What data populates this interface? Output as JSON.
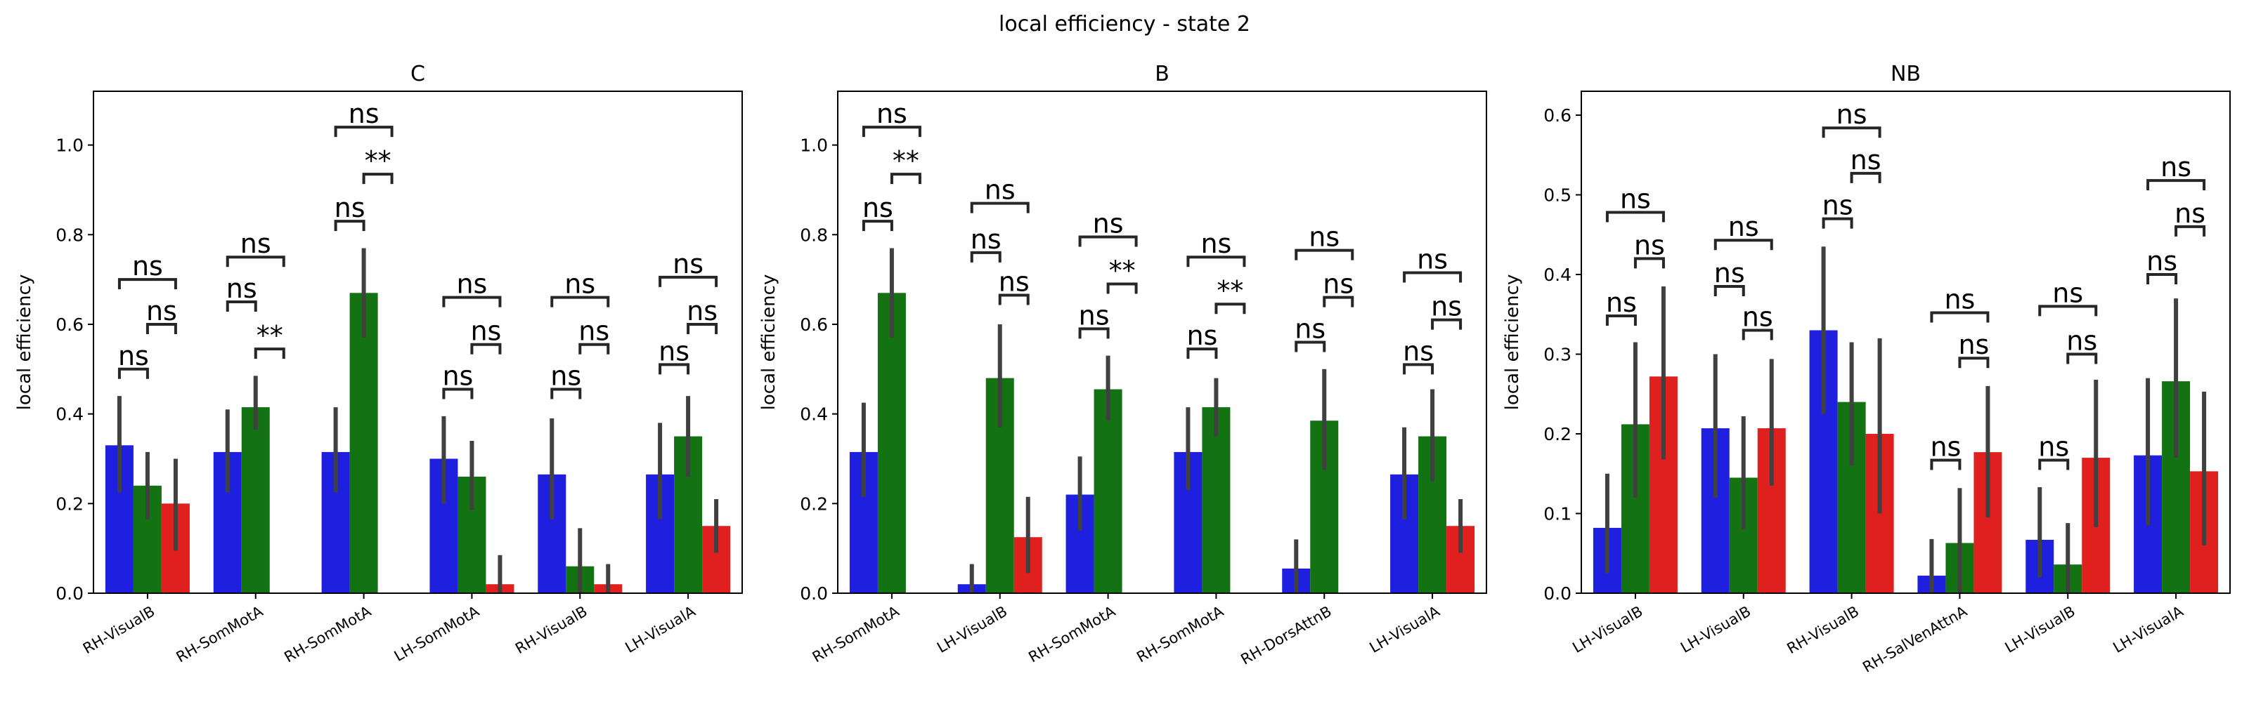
{
  "suptitle": "local efficiency - state 2",
  "colors": {
    "blue": "#1f1fe0",
    "green": "#137313",
    "red": "#e01f1f",
    "error_bar": "#404040"
  },
  "chart_data": [
    {
      "type": "bar",
      "title": "C",
      "ylabel": "local efficiency",
      "ylim": [
        0,
        1.12
      ],
      "yticks": [
        0.0,
        0.2,
        0.4,
        0.6,
        0.8,
        1.0
      ],
      "categories": [
        "RH-VisualB",
        "RH-SomMotA",
        "RH-SomMotA",
        "LH-SomMotA",
        "RH-VisualB",
        "LH-VisualA"
      ],
      "series": [
        {
          "color": "blue",
          "values": [
            0.33,
            0.315,
            0.315,
            0.3,
            0.265,
            0.265
          ],
          "err_low": [
            0.225,
            0.225,
            0.225,
            0.2,
            0.165,
            0.165
          ],
          "err_high": [
            0.44,
            0.41,
            0.415,
            0.395,
            0.39,
            0.38
          ]
        },
        {
          "color": "green",
          "values": [
            0.24,
            0.415,
            0.67,
            0.26,
            0.06,
            0.35
          ],
          "err_low": [
            0.165,
            0.365,
            0.57,
            0.185,
            0.0,
            0.26
          ],
          "err_high": [
            0.315,
            0.485,
            0.77,
            0.34,
            0.145,
            0.44
          ]
        },
        {
          "color": "red",
          "values": [
            0.2,
            null,
            null,
            0.02,
            0.02,
            0.15
          ],
          "err_low": [
            0.095,
            null,
            null,
            0.0,
            0.0,
            0.09
          ],
          "err_high": [
            0.3,
            null,
            null,
            0.085,
            0.065,
            0.21
          ]
        }
      ],
      "annotations": [
        {
          "cat": 0,
          "a": 0,
          "b": 1,
          "y": 0.5,
          "text": "ns"
        },
        {
          "cat": 0,
          "a": 1,
          "b": 2,
          "y": 0.6,
          "text": "ns"
        },
        {
          "cat": 0,
          "a": 0,
          "b": 2,
          "y": 0.7,
          "text": "ns"
        },
        {
          "cat": 1,
          "a": 0,
          "b": 1,
          "y": 0.65,
          "text": "ns"
        },
        {
          "cat": 1,
          "a": 1,
          "b": 2,
          "y": 0.545,
          "text": "**"
        },
        {
          "cat": 1,
          "a": 0,
          "b": 2,
          "y": 0.75,
          "text": "ns"
        },
        {
          "cat": 2,
          "a": 0,
          "b": 1,
          "y": 0.83,
          "text": "ns"
        },
        {
          "cat": 2,
          "a": 1,
          "b": 2,
          "y": 0.935,
          "text": "**"
        },
        {
          "cat": 2,
          "a": 0,
          "b": 2,
          "y": 1.04,
          "text": "ns"
        },
        {
          "cat": 3,
          "a": 0,
          "b": 1,
          "y": 0.455,
          "text": "ns"
        },
        {
          "cat": 3,
          "a": 1,
          "b": 2,
          "y": 0.555,
          "text": "ns"
        },
        {
          "cat": 3,
          "a": 0,
          "b": 2,
          "y": 0.66,
          "text": "ns"
        },
        {
          "cat": 4,
          "a": 0,
          "b": 1,
          "y": 0.455,
          "text": "ns"
        },
        {
          "cat": 4,
          "a": 1,
          "b": 2,
          "y": 0.555,
          "text": "ns"
        },
        {
          "cat": 4,
          "a": 0,
          "b": 2,
          "y": 0.66,
          "text": "ns"
        },
        {
          "cat": 5,
          "a": 0,
          "b": 1,
          "y": 0.51,
          "text": "ns"
        },
        {
          "cat": 5,
          "a": 1,
          "b": 2,
          "y": 0.6,
          "text": "ns"
        },
        {
          "cat": 5,
          "a": 0,
          "b": 2,
          "y": 0.705,
          "text": "ns"
        }
      ]
    },
    {
      "type": "bar",
      "title": "B",
      "ylabel": "local efficiency",
      "ylim": [
        0,
        1.12
      ],
      "yticks": [
        0.0,
        0.2,
        0.4,
        0.6,
        0.8,
        1.0
      ],
      "categories": [
        "RH-SomMotA",
        "LH-VisualB",
        "RH-SomMotA",
        "RH-SomMotA",
        "RH-DorsAttnB",
        "LH-VisualA"
      ],
      "series": [
        {
          "color": "blue",
          "values": [
            0.315,
            0.02,
            0.22,
            0.315,
            0.055,
            0.265
          ],
          "err_low": [
            0.215,
            0.0,
            0.14,
            0.23,
            0.0,
            0.165
          ],
          "err_high": [
            0.425,
            0.065,
            0.305,
            0.415,
            0.12,
            0.37
          ]
        },
        {
          "color": "green",
          "values": [
            0.67,
            0.48,
            0.455,
            0.415,
            0.385,
            0.35
          ],
          "err_low": [
            0.57,
            0.37,
            0.385,
            0.35,
            0.275,
            0.25
          ],
          "err_high": [
            0.77,
            0.6,
            0.53,
            0.48,
            0.5,
            0.455
          ]
        },
        {
          "color": "red",
          "values": [
            null,
            0.125,
            null,
            null,
            null,
            0.15
          ],
          "err_low": [
            null,
            0.045,
            null,
            null,
            null,
            0.09
          ],
          "err_high": [
            null,
            0.215,
            null,
            null,
            null,
            0.21
          ]
        }
      ],
      "annotations": [
        {
          "cat": 0,
          "a": 0,
          "b": 1,
          "y": 0.83,
          "text": "ns"
        },
        {
          "cat": 0,
          "a": 1,
          "b": 2,
          "y": 0.935,
          "text": "**"
        },
        {
          "cat": 0,
          "a": 0,
          "b": 2,
          "y": 1.04,
          "text": "ns"
        },
        {
          "cat": 1,
          "a": 0,
          "b": 1,
          "y": 0.76,
          "text": "ns"
        },
        {
          "cat": 1,
          "a": 1,
          "b": 2,
          "y": 0.665,
          "text": "ns"
        },
        {
          "cat": 1,
          "a": 0,
          "b": 2,
          "y": 0.87,
          "text": "ns"
        },
        {
          "cat": 2,
          "a": 0,
          "b": 1,
          "y": 0.59,
          "text": "ns"
        },
        {
          "cat": 2,
          "a": 1,
          "b": 2,
          "y": 0.69,
          "text": "**"
        },
        {
          "cat": 2,
          "a": 0,
          "b": 2,
          "y": 0.795,
          "text": "ns"
        },
        {
          "cat": 3,
          "a": 0,
          "b": 1,
          "y": 0.545,
          "text": "ns"
        },
        {
          "cat": 3,
          "a": 1,
          "b": 2,
          "y": 0.645,
          "text": "**"
        },
        {
          "cat": 3,
          "a": 0,
          "b": 2,
          "y": 0.75,
          "text": "ns"
        },
        {
          "cat": 4,
          "a": 0,
          "b": 1,
          "y": 0.56,
          "text": "ns"
        },
        {
          "cat": 4,
          "a": 1,
          "b": 2,
          "y": 0.66,
          "text": "ns"
        },
        {
          "cat": 4,
          "a": 0,
          "b": 2,
          "y": 0.765,
          "text": "ns"
        },
        {
          "cat": 5,
          "a": 0,
          "b": 1,
          "y": 0.51,
          "text": "ns"
        },
        {
          "cat": 5,
          "a": 1,
          "b": 2,
          "y": 0.61,
          "text": "ns"
        },
        {
          "cat": 5,
          "a": 0,
          "b": 2,
          "y": 0.715,
          "text": "ns"
        }
      ]
    },
    {
      "type": "bar",
      "title": "NB",
      "ylabel": "local efficiency",
      "ylim": [
        0,
        0.63
      ],
      "yticks": [
        0.0,
        0.1,
        0.2,
        0.3,
        0.4,
        0.5,
        0.6
      ],
      "categories": [
        "LH-VisualB",
        "LH-VisualB",
        "RH-VisualB",
        "RH-SalVenAttnA",
        "LH-VisualB",
        "LH-VisualA"
      ],
      "series": [
        {
          "color": "blue",
          "values": [
            0.082,
            0.207,
            0.33,
            0.022,
            0.067,
            0.173
          ],
          "err_low": [
            0.025,
            0.12,
            0.225,
            0.0,
            0.02,
            0.085
          ],
          "err_high": [
            0.15,
            0.3,
            0.435,
            0.068,
            0.133,
            0.27
          ]
        },
        {
          "color": "green",
          "values": [
            0.212,
            0.145,
            0.24,
            0.063,
            0.036,
            0.266
          ],
          "err_low": [
            0.12,
            0.08,
            0.16,
            0.0,
            0.0,
            0.17
          ],
          "err_high": [
            0.315,
            0.222,
            0.315,
            0.132,
            0.088,
            0.37
          ]
        },
        {
          "color": "red",
          "values": [
            0.272,
            0.207,
            0.2,
            0.177,
            0.17,
            0.153
          ],
          "err_low": [
            0.168,
            0.135,
            0.1,
            0.095,
            0.083,
            0.06
          ],
          "err_high": [
            0.385,
            0.294,
            0.32,
            0.26,
            0.268,
            0.253
          ]
        }
      ],
      "annotations": [
        {
          "cat": 0,
          "a": 0,
          "b": 1,
          "y": 0.348,
          "text": "ns"
        },
        {
          "cat": 0,
          "a": 1,
          "b": 2,
          "y": 0.42,
          "text": "ns"
        },
        {
          "cat": 0,
          "a": 0,
          "b": 2,
          "y": 0.478,
          "text": "ns"
        },
        {
          "cat": 1,
          "a": 0,
          "b": 1,
          "y": 0.385,
          "text": "ns"
        },
        {
          "cat": 1,
          "a": 1,
          "b": 2,
          "y": 0.33,
          "text": "ns"
        },
        {
          "cat": 1,
          "a": 0,
          "b": 2,
          "y": 0.443,
          "text": "ns"
        },
        {
          "cat": 2,
          "a": 0,
          "b": 1,
          "y": 0.47,
          "text": "ns"
        },
        {
          "cat": 2,
          "a": 1,
          "b": 2,
          "y": 0.527,
          "text": "ns"
        },
        {
          "cat": 2,
          "a": 0,
          "b": 2,
          "y": 0.584,
          "text": "ns"
        },
        {
          "cat": 3,
          "a": 0,
          "b": 1,
          "y": 0.167,
          "text": "ns"
        },
        {
          "cat": 3,
          "a": 1,
          "b": 2,
          "y": 0.295,
          "text": "ns"
        },
        {
          "cat": 3,
          "a": 0,
          "b": 2,
          "y": 0.352,
          "text": "ns"
        },
        {
          "cat": 4,
          "a": 0,
          "b": 1,
          "y": 0.167,
          "text": "ns"
        },
        {
          "cat": 4,
          "a": 1,
          "b": 2,
          "y": 0.3,
          "text": "ns"
        },
        {
          "cat": 4,
          "a": 0,
          "b": 2,
          "y": 0.36,
          "text": "ns"
        },
        {
          "cat": 5,
          "a": 0,
          "b": 1,
          "y": 0.4,
          "text": "ns"
        },
        {
          "cat": 5,
          "a": 1,
          "b": 2,
          "y": 0.46,
          "text": "ns"
        },
        {
          "cat": 5,
          "a": 0,
          "b": 2,
          "y": 0.518,
          "text": "ns"
        }
      ]
    }
  ]
}
